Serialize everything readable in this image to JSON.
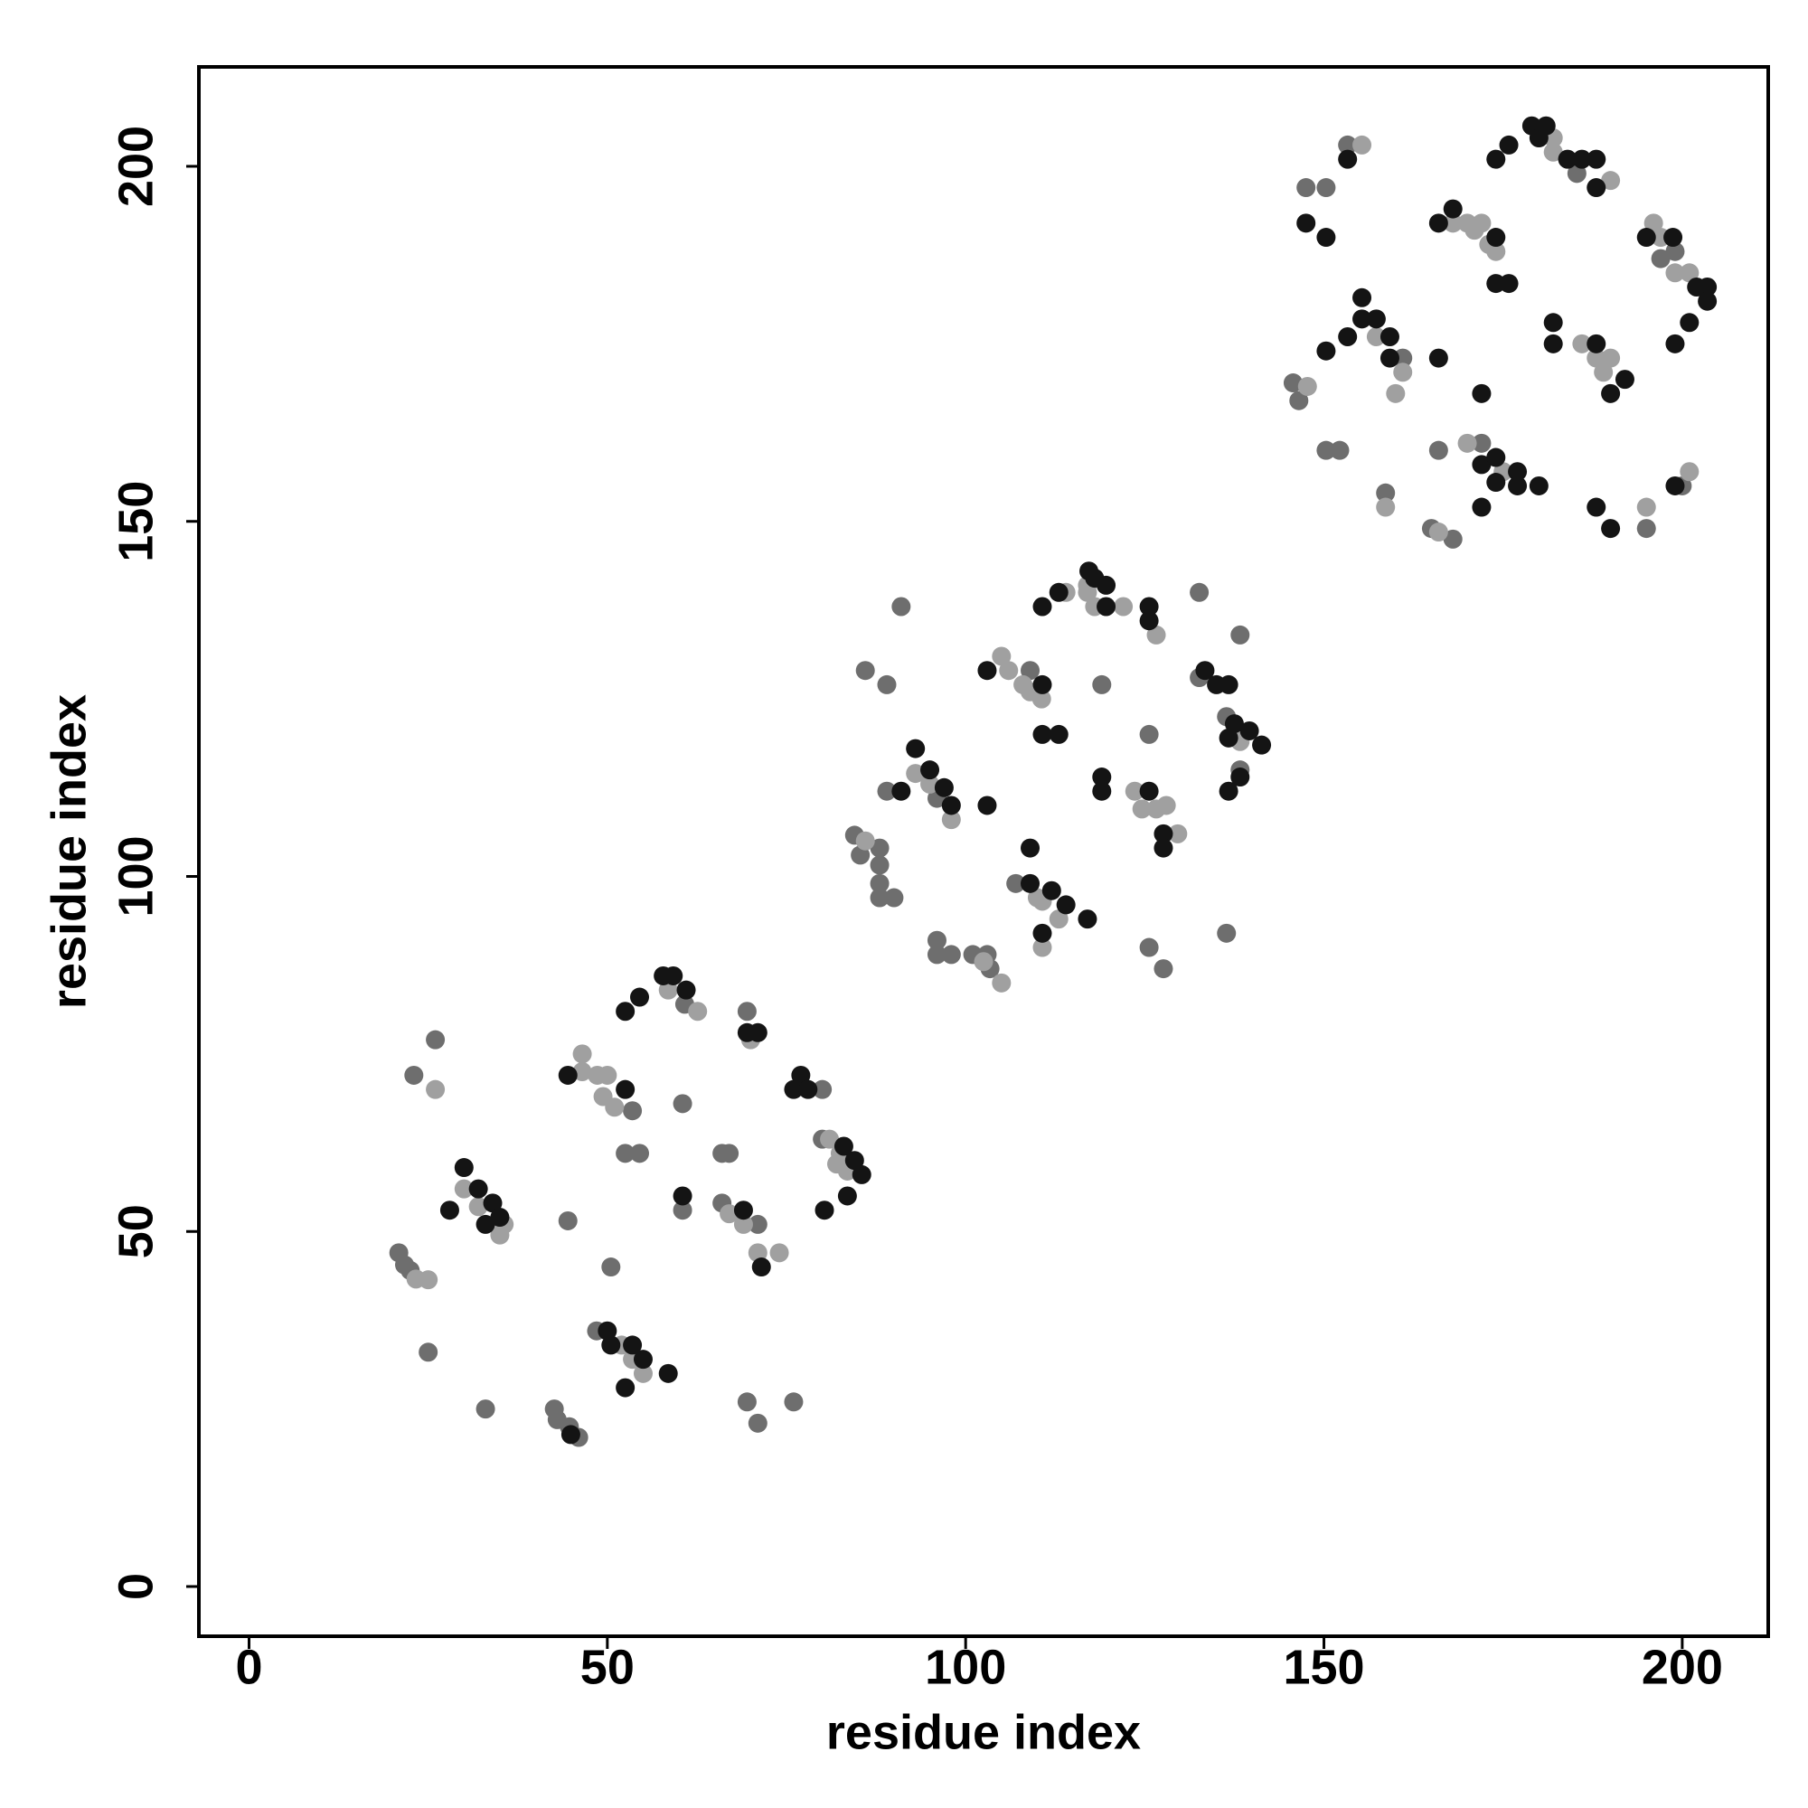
{
  "chart_data": {
    "type": "scatter",
    "xlabel": "residue index",
    "ylabel": "residue index",
    "xlim": [
      -7,
      212
    ],
    "ylim": [
      -7,
      214
    ],
    "xticks": [
      0,
      50,
      100,
      150,
      200
    ],
    "yticks": [
      0,
      50,
      100,
      150,
      200
    ],
    "grid": false,
    "series": [
      {
        "color": "#6e6e6e",
        "x": [
          20.9,
          21.7,
          22.5,
          25,
          23,
          26,
          33,
          44.5,
          42.6,
          43,
          44.7,
          46,
          53.5,
          52.5,
          54.5,
          60.8,
          60.5,
          60.5,
          48.5,
          50.5,
          66,
          67,
          66,
          71,
          69.5,
          69.5,
          71,
          76,
          80,
          80,
          84.5,
          85.3,
          88,
          88,
          88,
          88,
          90,
          89,
          86,
          89,
          91,
          96,
          96,
          96,
          98,
          101,
          103.4,
          103,
          109,
          119,
          107,
          125.6,
          125.6,
          127.6,
          132.6,
          132.6,
          136.4,
          138.3,
          138.3,
          136.4,
          145.7,
          146.5,
          150.3,
          152.2,
          147.5,
          150.3,
          153.3,
          161,
          158.6,
          166,
          165,
          168,
          172,
          185.3,
          195,
          199,
          197,
          200
        ],
        "values": [
          47,
          45.3,
          44.5,
          33,
          72,
          77,
          25,
          51.5,
          25,
          23.5,
          22.5,
          21,
          67,
          61,
          61,
          82,
          68,
          53,
          36,
          45,
          61,
          61,
          54,
          51,
          81,
          26,
          23,
          26,
          70,
          63,
          105.8,
          103,
          104,
          101.6,
          99,
          97,
          97,
          112,
          129,
          127,
          138,
          111,
          91,
          89,
          89,
          89,
          87,
          89,
          129,
          127,
          99,
          120,
          90,
          87,
          140,
          128,
          122.5,
          115,
          134,
          92,
          169.5,
          167,
          160,
          160,
          197,
          197,
          203,
          173,
          154,
          160,
          149,
          147.5,
          161,
          199,
          149,
          188,
          187,
          155
        ]
      },
      {
        "color": "#a0a0a0",
        "x": [
          23.3,
          25,
          26,
          30,
          32,
          35.6,
          35,
          46.5,
          46.5,
          48.6,
          50,
          49.4,
          51,
          58.5,
          62.6,
          52,
          53.5,
          55,
          67,
          69,
          71,
          74,
          70,
          81,
          82.5,
          82,
          83.5,
          86,
          93,
          95,
          98,
          102.5,
          105,
          105,
          106,
          108,
          109,
          110.6,
          114,
          117,
          117,
          118,
          122,
          110,
          110.7,
          113,
          110.7,
          126.6,
          123.6,
          124.6,
          126.6,
          128,
          129.6,
          138.3,
          147.7,
          155.3,
          157.3,
          161,
          160,
          158.6,
          168,
          170,
          172,
          171,
          173,
          174,
          166,
          170,
          175,
          182,
          182,
          190,
          186,
          188,
          190,
          189,
          195,
          196,
          197,
          199,
          201,
          201
        ],
        "values": [
          43.3,
          43.2,
          70,
          56,
          53.5,
          51,
          49.5,
          75,
          72.5,
          72,
          72,
          69,
          67.5,
          84,
          81,
          34,
          32,
          30,
          52.5,
          51,
          47,
          47,
          77,
          63,
          61,
          59.5,
          58.5,
          105,
          114.5,
          113,
          108,
          88,
          85,
          131,
          129,
          127,
          126,
          125,
          140,
          141,
          140,
          138,
          138,
          97,
          96.5,
          94,
          90,
          134,
          112,
          109.5,
          109.5,
          110,
          106,
          119,
          169,
          203,
          176,
          171,
          168,
          152,
          192,
          192,
          192,
          191,
          189,
          188,
          148.5,
          161,
          157,
          204,
          202,
          198,
          175,
          173,
          173,
          171,
          152,
          192,
          190,
          185,
          185,
          157
        ]
      },
      {
        "color": "#141414",
        "x": [
          28,
          30,
          32,
          34,
          35,
          33,
          44.5,
          44.9,
          52.5,
          52.5,
          54.5,
          57.8,
          59.2,
          61,
          60.5,
          50,
          50.5,
          53.5,
          55,
          52.5,
          58.5,
          69,
          71.5,
          69.5,
          71,
          77,
          76,
          78,
          83,
          84.5,
          85.5,
          83.5,
          80.3,
          91,
          93,
          95,
          97,
          98,
          103,
          103,
          110.7,
          110.7,
          110.7,
          113,
          113,
          117.2,
          118,
          119.6,
          119.6,
          119,
          119,
          109,
          109,
          112,
          114,
          117,
          110.7,
          125.6,
          125.6,
          125.6,
          127.6,
          127.6,
          133.4,
          135,
          136.7,
          137.5,
          136.7,
          139.6,
          141.3,
          138.3,
          136.7,
          147.5,
          150.3,
          150.3,
          153.3,
          153.3,
          155.3,
          155.3,
          157.3,
          159.2,
          159.2,
          166,
          168,
          174,
          166,
          172,
          174,
          177,
          177,
          180,
          172,
          174,
          172,
          174,
          175.8,
          174,
          175.8,
          179,
          181,
          180,
          184,
          186,
          188,
          188,
          182,
          182,
          188,
          190,
          192,
          188,
          190,
          195,
          198.7,
          202,
          203.5,
          203.5,
          199,
          201,
          199
        ],
        "values": [
          53,
          59,
          56,
          54,
          52,
          51,
          72,
          21.4,
          70,
          81,
          83,
          86,
          86,
          84,
          55,
          36,
          34,
          34,
          32,
          28,
          30,
          53,
          45,
          78,
          78,
          72,
          70,
          70,
          62,
          60,
          58,
          55,
          53,
          112,
          118,
          115,
          112.5,
          110,
          110,
          129,
          127,
          138,
          120,
          120,
          140,
          143,
          142,
          141,
          138,
          114,
          112,
          104,
          99,
          98,
          96,
          94,
          92,
          138,
          136,
          112,
          106,
          104,
          129,
          127,
          127,
          121.5,
          119.5,
          120.5,
          118.5,
          114,
          112,
          192,
          190,
          174,
          176,
          201,
          181.5,
          178.5,
          178.5,
          176,
          173,
          192,
          194,
          190,
          173,
          158,
          159,
          157,
          155,
          155,
          152,
          155.5,
          168,
          201,
          203,
          183.5,
          183.5,
          205.7,
          205.7,
          204,
          201,
          201,
          201,
          197,
          178,
          175,
          175,
          168,
          170,
          152,
          149,
          190,
          190,
          183,
          183,
          181,
          175,
          178,
          155
        ]
      }
    ]
  }
}
